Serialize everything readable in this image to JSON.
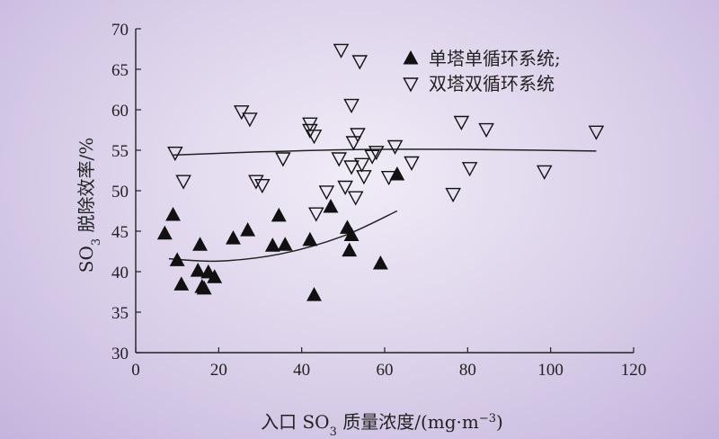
{
  "chart_data": {
    "type": "scatter",
    "title": "",
    "xlabel": "入口 SO3 质量浓度/(mg·m−3)",
    "xlabel_parts": {
      "pre": "入口 SO",
      "sub": "3",
      "post": " 质量浓度/(mg·m",
      "sup": "−3",
      "end": ")"
    },
    "ylabel": "SO3 脱除效率/%",
    "ylabel_parts": {
      "pre": "SO",
      "sub": "3",
      "post": " 脱除效率/%"
    },
    "xlim": [
      0,
      120
    ],
    "ylim": [
      30,
      70
    ],
    "xticks": [
      0,
      20,
      40,
      60,
      80,
      100,
      120
    ],
    "yticks": [
      30,
      35,
      40,
      45,
      50,
      55,
      60,
      65,
      70
    ],
    "grid": false,
    "legend_position": "top-right",
    "series": [
      {
        "name": "单塔单循环系统;",
        "marker": "filled-triangle-up",
        "color": "#111111",
        "points": [
          [
            7,
            44.7
          ],
          [
            9,
            47
          ],
          [
            10,
            41.4
          ],
          [
            11,
            38.4
          ],
          [
            15,
            40.1
          ],
          [
            15.5,
            43.3
          ],
          [
            16,
            38.1
          ],
          [
            16.5,
            37.9
          ],
          [
            17.5,
            39.9
          ],
          [
            19,
            39.3
          ],
          [
            23.5,
            44.1
          ],
          [
            27,
            45.1
          ],
          [
            33,
            43.2
          ],
          [
            34.5,
            46.9
          ],
          [
            36,
            43.3
          ],
          [
            42,
            43.9
          ],
          [
            43,
            37.1
          ],
          [
            47,
            48
          ],
          [
            51,
            45.4
          ],
          [
            52,
            44.5
          ],
          [
            51.5,
            42.6
          ],
          [
            59,
            41
          ],
          [
            63,
            52
          ]
        ]
      },
      {
        "name": "双塔双循环系统",
        "marker": "open-triangle-down",
        "color": "#111111",
        "points": [
          [
            9.5,
            54.7
          ],
          [
            11.5,
            51.2
          ],
          [
            25.5,
            59.8
          ],
          [
            27.5,
            58.9
          ],
          [
            29,
            51.2
          ],
          [
            30.5,
            50.7
          ],
          [
            35.5,
            54
          ],
          [
            42,
            58.3
          ],
          [
            42,
            57.5
          ],
          [
            43,
            56.8
          ],
          [
            43.5,
            47.2
          ],
          [
            46,
            49.9
          ],
          [
            49,
            54
          ],
          [
            49.5,
            67.4
          ],
          [
            50.5,
            50.5
          ],
          [
            52,
            60.6
          ],
          [
            52,
            53
          ],
          [
            52.5,
            56
          ],
          [
            53,
            49.2
          ],
          [
            53.5,
            57
          ],
          [
            54,
            66
          ],
          [
            54.5,
            53.3
          ],
          [
            55,
            51.8
          ],
          [
            57,
            54.3
          ],
          [
            58,
            54.8
          ],
          [
            61,
            51.7
          ],
          [
            62.5,
            55.5
          ],
          [
            66.5,
            53.5
          ],
          [
            76.5,
            49.6
          ],
          [
            78.5,
            58.5
          ],
          [
            80.5,
            52.8
          ],
          [
            84.5,
            57.6
          ],
          [
            98.5,
            52.4
          ],
          [
            111,
            57.3
          ]
        ]
      }
    ],
    "trend_lines": [
      {
        "series": "单塔单循环系统;",
        "points": [
          [
            8,
            41.6
          ],
          [
            20,
            41.3
          ],
          [
            35,
            42.2
          ],
          [
            50,
            44.4
          ],
          [
            63,
            47.5
          ]
        ]
      },
      {
        "series": "双塔双循环系统",
        "points": [
          [
            9,
            54.4
          ],
          [
            30,
            54.8
          ],
          [
            55,
            55.1
          ],
          [
            80,
            55.1
          ],
          [
            111,
            54.9
          ]
        ]
      }
    ]
  }
}
